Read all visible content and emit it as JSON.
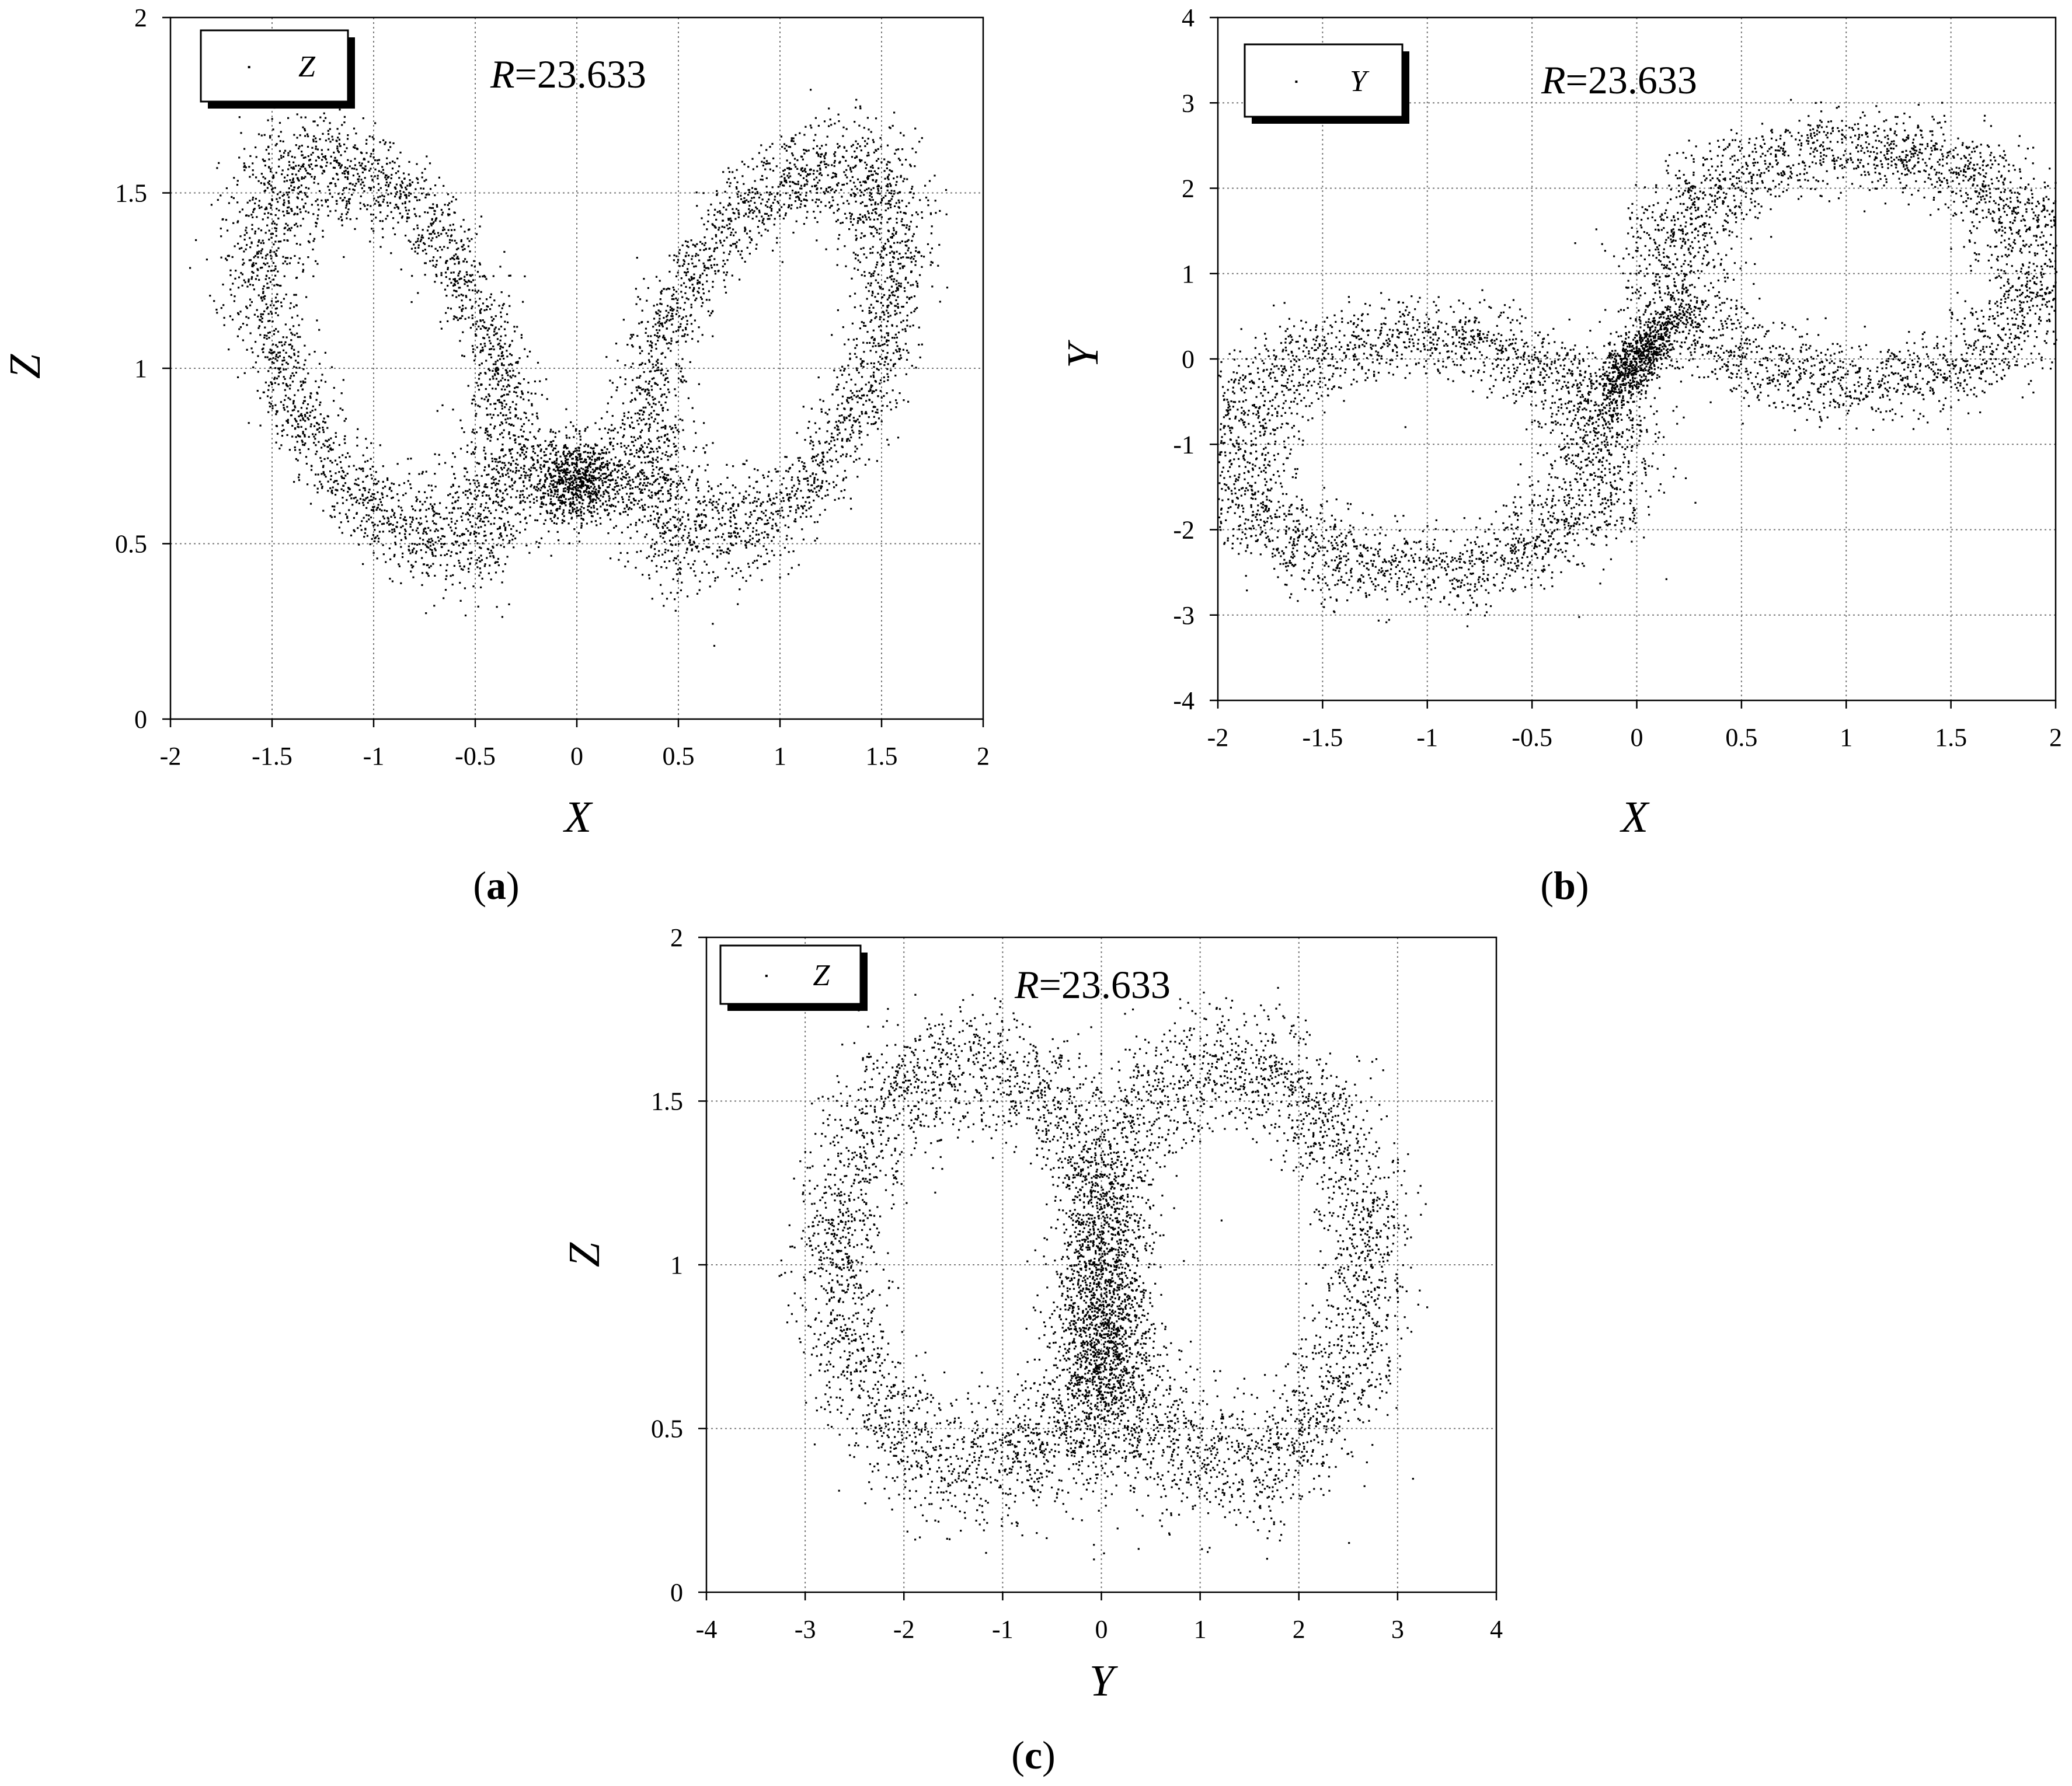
{
  "chart_data": [
    {
      "panel": "a",
      "type": "scatter",
      "attractor": "butterfly",
      "xlabel": "X",
      "ylabel": "Z",
      "xlim": [
        -2,
        2
      ],
      "ylim": [
        0,
        2
      ],
      "xticks": [
        "-2",
        "-1.5",
        "-1",
        "-0.5",
        "0",
        "0.5",
        "1",
        "1.5",
        "2"
      ],
      "yticks": [
        "0",
        "0.5",
        "1",
        "1.5",
        "2"
      ],
      "legend": "Z",
      "legend_position": "top-left",
      "annotation_var": "R",
      "annotation_value": "=23.633",
      "caption": "a",
      "grid": true,
      "marker_color": "#000000",
      "lobes": [
        {
          "center": [
            -0.95,
            1.05
          ],
          "rx": 0.7,
          "ry": 0.42,
          "tilt": -0.62
        },
        {
          "center": [
            0.95,
            1.05
          ],
          "rx": 0.7,
          "ry": 0.42,
          "tilt": 0.62
        }
      ]
    },
    {
      "panel": "b",
      "type": "scatter",
      "attractor": "figure-eight",
      "xlabel": "X",
      "ylabel": "Y",
      "xlim": [
        -2,
        2
      ],
      "ylim": [
        -4,
        4
      ],
      "xticks": [
        "-2",
        "-1.5",
        "-1",
        "-0.5",
        "0",
        "0.5",
        "1",
        "1.5",
        "2"
      ],
      "yticks": [
        "-4",
        "-3",
        "-2",
        "-1",
        "0",
        "1",
        "2",
        "3",
        "4"
      ],
      "legend": "Y",
      "legend_position": "top-left",
      "annotation_var": "R",
      "annotation_value": "=23.633",
      "caption": "b",
      "grid": true,
      "marker_color": "#000000",
      "lobes": [
        {
          "center": [
            -1.05,
            -1.1
          ],
          "rx": 0.9,
          "ry": 1.4,
          "tilt": 0.0
        },
        {
          "center": [
            1.05,
            1.1
          ],
          "rx": 0.9,
          "ry": 1.4,
          "tilt": 0.0
        }
      ]
    },
    {
      "panel": "c",
      "type": "scatter",
      "attractor": "ring-pair",
      "xlabel": "Y",
      "ylabel": "Z",
      "xlim": [
        -4,
        4
      ],
      "ylim": [
        0,
        2
      ],
      "xticks": [
        "-4",
        "-3",
        "-2",
        "-1",
        "0",
        "1",
        "2",
        "3",
        "4"
      ],
      "yticks": [
        "0",
        "0.5",
        "1",
        "1.5",
        "2"
      ],
      "legend": "Z",
      "legend_position": "top-left",
      "annotation_var": "R",
      "annotation_value": "=23.633",
      "caption": "c",
      "grid": true,
      "marker_color": "#000000",
      "lobes": [
        {
          "center": [
            -1.3,
            1.0
          ],
          "rx": 1.4,
          "ry": 0.62,
          "tilt": 0.0
        },
        {
          "center": [
            1.3,
            1.0
          ],
          "rx": 1.4,
          "ry": 0.62,
          "tilt": 0.0
        }
      ]
    }
  ]
}
